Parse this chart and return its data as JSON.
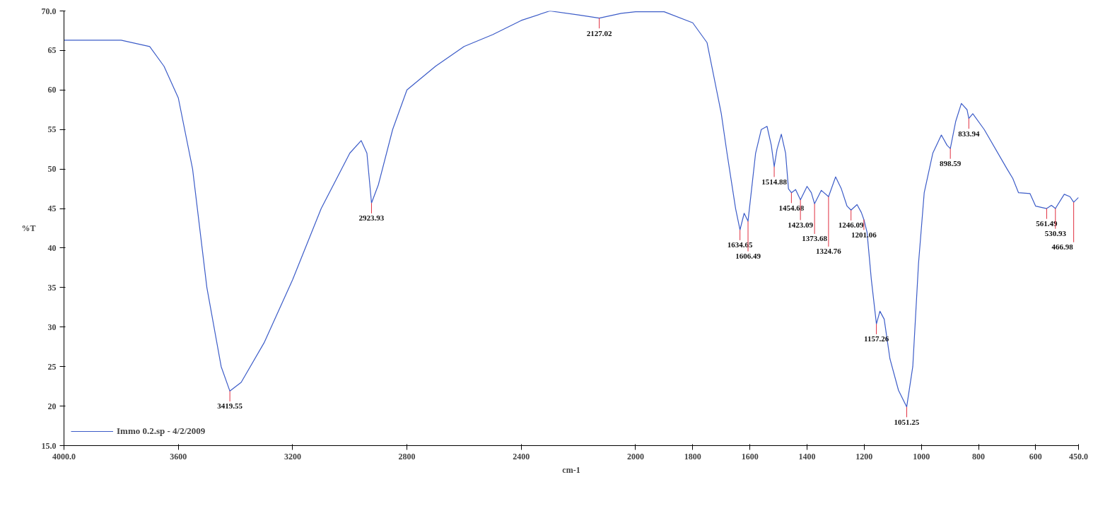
{
  "chart_data": {
    "type": "line",
    "xlabel": "cm-1",
    "ylabel": "%T",
    "xlim": [
      4000,
      450
    ],
    "ylim": [
      15,
      70
    ],
    "xticks": [
      {
        "value": 4000,
        "label": "4000.0"
      },
      3600,
      3200,
      2800,
      2400,
      2000,
      1800,
      1600,
      1400,
      1200,
      1000,
      800,
      600,
      {
        "value": 450,
        "label": "450.0"
      }
    ],
    "yticks": [
      {
        "value": 15,
        "label": "15.0"
      },
      20,
      25,
      30,
      35,
      40,
      45,
      50,
      55,
      60,
      65,
      {
        "value": 70,
        "label": "70.0"
      }
    ],
    "grid": false,
    "legend": "bottom left",
    "marker": "none",
    "line_style": "solid",
    "series": [
      {
        "name": "Immo 0.2.sp - 4/2/2009",
        "color": "#3c5cc8",
        "x": [
          4000,
          3800,
          3700,
          3650,
          3600,
          3550,
          3500,
          3450,
          3419.55,
          3380,
          3300,
          3200,
          3100,
          3000,
          2960,
          2940,
          2923.93,
          2900,
          2850,
          2800,
          2700,
          2600,
          2500,
          2400,
          2300,
          2200,
          2127.02,
          2050,
          2000,
          1900,
          1800,
          1750,
          1700,
          1680,
          1650,
          1634.65,
          1620,
          1606.49,
          1580,
          1560,
          1540,
          1525,
          1514.88,
          1505,
          1490,
          1475,
          1465,
          1454.68,
          1440,
          1423.09,
          1400,
          1385,
          1373.68,
          1350,
          1324.76,
          1300,
          1280,
          1260,
          1246.09,
          1225,
          1210,
          1201.06,
          1190,
          1175,
          1157.26,
          1145,
          1130,
          1110,
          1080,
          1051.25,
          1030,
          1010,
          990,
          960,
          930,
          910,
          898.59,
          880,
          860,
          840,
          833.94,
          820,
          780,
          700,
          680,
          660,
          620,
          600,
          561.49,
          545,
          530.93,
          500,
          480,
          466.98,
          450
        ],
        "values": [
          66.3,
          66.3,
          65.5,
          63,
          59,
          50,
          35,
          25,
          21.9,
          23,
          28,
          36,
          45,
          52,
          53.6,
          52,
          45.7,
          48,
          55,
          60,
          63,
          65.5,
          67,
          68.8,
          70,
          69.5,
          69.1,
          69.7,
          69.9,
          69.9,
          68.5,
          66,
          57,
          52,
          45,
          42.3,
          44.4,
          43.4,
          52,
          55,
          55.4,
          53,
          50.3,
          52.5,
          54.4,
          52,
          47.5,
          47,
          47.4,
          46.1,
          47.8,
          47,
          45.6,
          47.3,
          46.5,
          49,
          47.5,
          45.3,
          44.8,
          45.5,
          44.5,
          43.6,
          42,
          36,
          30.4,
          32,
          31,
          26,
          22,
          19.9,
          25,
          38,
          47,
          52,
          54.3,
          53,
          52.6,
          56,
          58.3,
          57.5,
          56.4,
          57,
          55,
          50,
          48.8,
          47,
          46.9,
          45.3,
          45,
          45.4,
          45,
          46.8,
          46.5,
          45.8,
          46.4
        ]
      }
    ],
    "annotations": [
      {
        "text": "3419.55",
        "x": 3419.55,
        "y": 21.9
      },
      {
        "text": "2923.93",
        "x": 2923.93,
        "y": 45.7
      },
      {
        "text": "2127.02",
        "x": 2127.02,
        "y": 69.1
      },
      {
        "text": "1634.65",
        "x": 1634.65,
        "y": 42.3
      },
      {
        "text": "1606.49",
        "x": 1606.49,
        "y": 43.4
      },
      {
        "text": "1514.88",
        "x": 1514.88,
        "y": 50.3
      },
      {
        "text": "1454.68",
        "x": 1454.68,
        "y": 47
      },
      {
        "text": "1423.09",
        "x": 1423.09,
        "y": 46.1
      },
      {
        "text": "1373.68",
        "x": 1373.68,
        "y": 45.6
      },
      {
        "text": "1324.76",
        "x": 1324.76,
        "y": 46.5
      },
      {
        "text": "1246.09",
        "x": 1246.09,
        "y": 44.8
      },
      {
        "text": "1201.06",
        "x": 1201.06,
        "y": 43.6
      },
      {
        "text": "1157.26",
        "x": 1157.26,
        "y": 30.4
      },
      {
        "text": "1051.25",
        "x": 1051.25,
        "y": 19.9
      },
      {
        "text": "898.59",
        "x": 898.59,
        "y": 52.6
      },
      {
        "text": "833.94",
        "x": 833.94,
        "y": 56.4
      },
      {
        "text": "561.49",
        "x": 561.49,
        "y": 45
      },
      {
        "text": "530.93",
        "x": 530.93,
        "y": 45
      },
      {
        "text": "466.98",
        "x": 466.98,
        "y": 45.8
      }
    ]
  }
}
